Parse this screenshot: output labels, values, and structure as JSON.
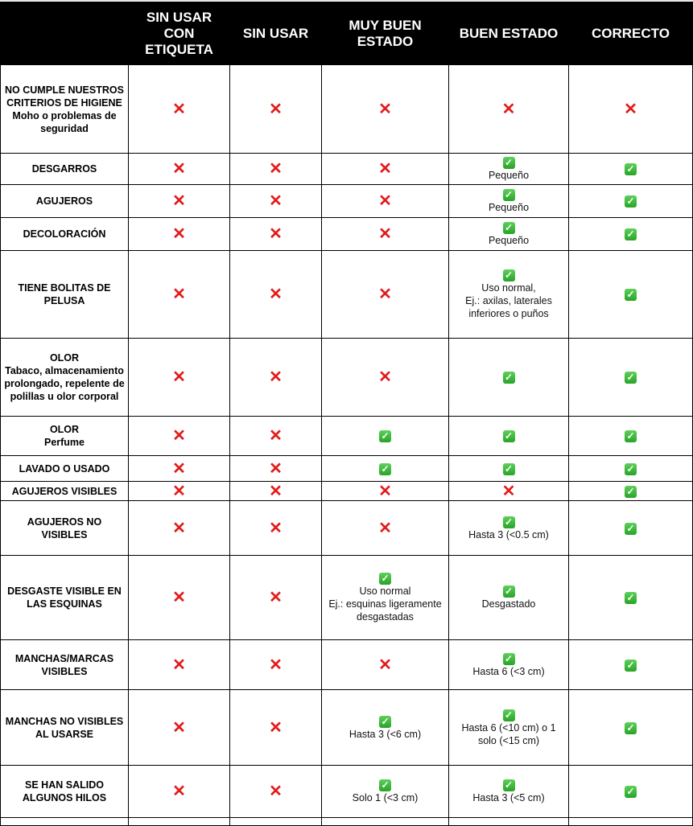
{
  "colors": {
    "cross": "#e21b1b",
    "check": "#2fb52f",
    "header_bg": "#000000"
  },
  "headers": [
    "",
    "SIN USAR CON ETIQUETA",
    "SIN USAR",
    "MUY BUEN ESTADO",
    "BUEN ESTADO",
    "CORRECTO"
  ],
  "rows": [
    {
      "label": [
        "NO CUMPLE NUESTROS CRITERIOS DE HIGIENE",
        "Moho o problemas de seguridad"
      ],
      "cells": [
        {
          "icon": "x"
        },
        {
          "icon": "x"
        },
        {
          "icon": "x"
        },
        {
          "icon": "x"
        },
        {
          "icon": "x"
        }
      ]
    },
    {
      "label": [
        "DESGARROS"
      ],
      "cells": [
        {
          "icon": "x"
        },
        {
          "icon": "x"
        },
        {
          "icon": "x"
        },
        {
          "icon": "check",
          "note": "Pequeño"
        },
        {
          "icon": "check"
        }
      ]
    },
    {
      "label": [
        "AGUJEROS"
      ],
      "cells": [
        {
          "icon": "x"
        },
        {
          "icon": "x"
        },
        {
          "icon": "x"
        },
        {
          "icon": "check",
          "note": "Pequeño"
        },
        {
          "icon": "check"
        }
      ]
    },
    {
      "label": [
        "DECOLORACIÓN"
      ],
      "cells": [
        {
          "icon": "x"
        },
        {
          "icon": "x"
        },
        {
          "icon": "x"
        },
        {
          "icon": "check",
          "note": "Pequeño"
        },
        {
          "icon": "check"
        }
      ]
    },
    {
      "label": [
        "TIENE BOLITAS DE PELUSA"
      ],
      "cells": [
        {
          "icon": "x"
        },
        {
          "icon": "x"
        },
        {
          "icon": "x"
        },
        {
          "icon": "check",
          "note": "Uso normal,\nEj.: axilas, laterales inferiores o puños"
        },
        {
          "icon": "check"
        }
      ]
    },
    {
      "label": [
        "OLOR",
        "Tabaco, almacenamiento prolongado, repelente de polillas u olor corporal"
      ],
      "cells": [
        {
          "icon": "x"
        },
        {
          "icon": "x"
        },
        {
          "icon": "x"
        },
        {
          "icon": "check"
        },
        {
          "icon": "check"
        }
      ]
    },
    {
      "label": [
        "OLOR",
        "Perfume"
      ],
      "cells": [
        {
          "icon": "x"
        },
        {
          "icon": "x"
        },
        {
          "icon": "check"
        },
        {
          "icon": "check"
        },
        {
          "icon": "check"
        }
      ]
    },
    {
      "label": [
        "LAVADO O USADO"
      ],
      "cells": [
        {
          "icon": "x"
        },
        {
          "icon": "x"
        },
        {
          "icon": "check"
        },
        {
          "icon": "check"
        },
        {
          "icon": "check"
        }
      ]
    },
    {
      "label": [
        "AGUJEROS VISIBLES"
      ],
      "cells": [
        {
          "icon": "x"
        },
        {
          "icon": "x"
        },
        {
          "icon": "x"
        },
        {
          "icon": "x"
        },
        {
          "icon": "check"
        }
      ]
    },
    {
      "label": [
        "AGUJEROS NO VISIBLES"
      ],
      "cells": [
        {
          "icon": "x"
        },
        {
          "icon": "x"
        },
        {
          "icon": "x"
        },
        {
          "icon": "check",
          "note": "Hasta 3 (<0.5 cm)"
        },
        {
          "icon": "check"
        }
      ]
    },
    {
      "label": [
        "DESGASTE VISIBLE EN LAS ESQUINAS"
      ],
      "cells": [
        {
          "icon": "x"
        },
        {
          "icon": "x"
        },
        {
          "icon": "check",
          "note": "Uso normal\nEj.: esquinas ligeramente desgastadas"
        },
        {
          "icon": "check",
          "note": "Desgastado"
        },
        {
          "icon": "check"
        }
      ]
    },
    {
      "label": [
        "MANCHAS/MARCAS VISIBLES"
      ],
      "cells": [
        {
          "icon": "x"
        },
        {
          "icon": "x"
        },
        {
          "icon": "x"
        },
        {
          "icon": "check",
          "note": "Hasta 6 (<3 cm)"
        },
        {
          "icon": "check"
        }
      ]
    },
    {
      "label": [
        "MANCHAS NO VISIBLES AL USARSE"
      ],
      "cells": [
        {
          "icon": "x"
        },
        {
          "icon": "x"
        },
        {
          "icon": "check",
          "note": "Hasta 3 (<6 cm)"
        },
        {
          "icon": "check",
          "note": "Hasta 6 (<10 cm) o 1 solo (<15 cm)"
        },
        {
          "icon": "check"
        }
      ]
    },
    {
      "label": [
        "SE HAN SALIDO ALGUNOS HILOS"
      ],
      "cells": [
        {
          "icon": "x"
        },
        {
          "icon": "x"
        },
        {
          "icon": "check",
          "note": "Solo 1 (<3 cm)"
        },
        {
          "icon": "check",
          "note": "Hasta 3 (<5 cm)"
        },
        {
          "icon": "check"
        }
      ]
    }
  ]
}
